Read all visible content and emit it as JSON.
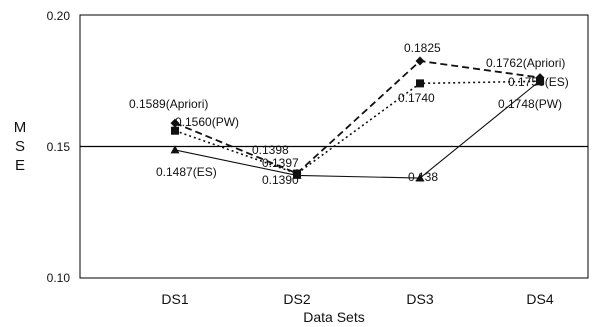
{
  "chart_data": {
    "type": "line",
    "title": "",
    "xlabel": "Data Sets",
    "ylabel": "MSE",
    "ylim": [
      0.1,
      0.2
    ],
    "yticks": [
      "0.10",
      "0.15",
      "0.20"
    ],
    "reference_line": 0.15,
    "categories": [
      "DS1",
      "DS2",
      "DS3",
      "DS4"
    ],
    "series": [
      {
        "values": [
          0.1589,
          0.1398,
          0.1825,
          0.1762
        ],
        "style": "dashed",
        "marker": "diamond",
        "color": "#111111"
      },
      {
        "values": [
          0.156,
          0.1397,
          0.174,
          0.1748
        ],
        "style": "dotted",
        "marker": "square",
        "color": "#111111"
      },
      {
        "values": [
          0.1487,
          0.139,
          0.138,
          0.175
        ],
        "style": "solid",
        "marker": "triangle",
        "color": "#111111"
      }
    ],
    "annotations": [
      {
        "text": "0.1589(Apriori)"
      },
      {
        "text": "0.1560(PW)"
      },
      {
        "text": "0.1487(ES)"
      },
      {
        "text": "0.1398"
      },
      {
        "text": "0.1397"
      },
      {
        "text": "0.1390"
      },
      {
        "text": "0.1825"
      },
      {
        "text": "0.1740"
      },
      {
        "text": "0.138"
      },
      {
        "text": "0.1762(Apriori)"
      },
      {
        "text": "0.1750(ES)"
      },
      {
        "text": "0.1748(PW)"
      }
    ]
  }
}
